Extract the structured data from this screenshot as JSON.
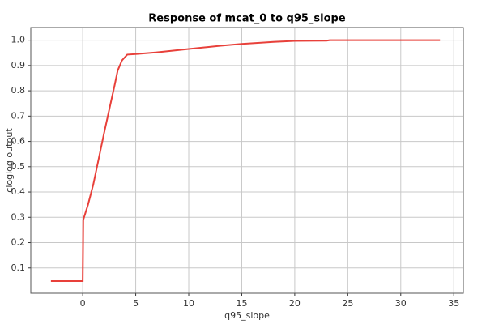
{
  "chart_data": {
    "type": "line",
    "title": "Response of mcat_0 to q95_slope",
    "x_label": "q95_slope",
    "y_label": "cloglog output",
    "series": [
      {
        "color": "#e8403a",
        "x": [
          -3,
          0,
          0.05,
          0.5,
          1,
          1.2,
          2,
          3,
          3.3,
          3.7,
          4.2,
          5,
          7,
          10,
          13,
          15,
          18,
          20,
          23,
          23.3,
          33.7
        ],
        "values": [
          0.048,
          0.048,
          0.29,
          0.35,
          0.43,
          0.47,
          0.63,
          0.82,
          0.88,
          0.92,
          0.943,
          0.945,
          0.952,
          0.965,
          0.978,
          0.985,
          0.993,
          0.997,
          0.998,
          1.0,
          1.0
        ]
      }
    ],
    "xlim": [
      -4.9,
      35.9
    ],
    "xticks": [
      0,
      5,
      10,
      15,
      20,
      25,
      30,
      35
    ],
    "ylim": [
      0,
      1.05
    ],
    "yticks": [
      0.1,
      0.2,
      0.3,
      0.4,
      0.5,
      0.6,
      0.7,
      0.8,
      0.9,
      {
        "value": 1,
        "label": "1.0"
      }
    ],
    "grid": true
  }
}
